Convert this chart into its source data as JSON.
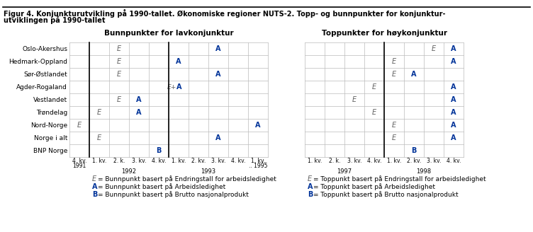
{
  "title_line1": "Figur 4. Konjunkturutvikling på 1990-tallet. Økonomiske regioner NUTS-2. Topp- og bunnpunkter for konjunktur-",
  "title_line2": "utviklingen på 1990-tallet",
  "left_header": "Bunnpunkter for lavkonjunktur",
  "right_header": "Toppunkter for høykonjunktur",
  "rows": [
    "Oslo-Akershus",
    "Hedmark-Oppland",
    "Sør-Østlandet",
    "Agder-Rogaland",
    "Vestlandet",
    "Trøndelag",
    "Nord-Norge",
    "Norge i alt",
    "BNP Norge"
  ],
  "left_quarter_labels": [
    "4. kv.",
    "1. kv.",
    "2. k.",
    "3. kv.",
    "4. kv.",
    "1. kv.",
    "2. kv.",
    "3. kv.",
    "4. kv.",
    "1. kv."
  ],
  "left_year_row1": [
    "1991",
    "",
    "",
    "",
    "",
    "",
    "",
    "",
    "",
    ".. 1995"
  ],
  "left_year_row2": [
    "",
    "1992",
    "",
    "",
    "",
    "1993",
    "",
    "",
    "",
    ""
  ],
  "left_year_centers": [
    [
      2,
      4,
      "1992"
    ],
    [
      6,
      9,
      "1993"
    ]
  ],
  "right_quarter_labels": [
    "1. kv.",
    "2. k.",
    "3. kv.",
    "4. kv.",
    "1. kv.",
    "2. kv.",
    "3. kv.",
    "4. kv."
  ],
  "right_year_centers": [
    [
      0,
      3,
      "1997"
    ],
    [
      4,
      7,
      "1998"
    ]
  ],
  "left_cells": {
    "Oslo-Akershus": {
      "2": "E",
      "7": "A"
    },
    "Hedmark-Oppland": {
      "2": "E",
      "5": "A"
    },
    "Sør-Østlandet": {
      "2": "E",
      "7": "A"
    },
    "Agder-Rogaland": {
      "5": "E+A"
    },
    "Vestlandet": {
      "2": "E",
      "3": "A"
    },
    "Trøndelag": {
      "1": "E",
      "3": "A"
    },
    "Nord-Norge": {
      "0": "E",
      "9": "A"
    },
    "Norge i alt": {
      "1": "E",
      "7": "A"
    },
    "BNP Norge": {
      "4": "B"
    }
  },
  "right_cells": {
    "Oslo-Akershus": {
      "6": "E",
      "7": "A"
    },
    "Hedmark-Oppland": {
      "4": "E",
      "7": "A"
    },
    "Sør-Østlandet": {
      "4": "E",
      "5": "A"
    },
    "Agder-Rogaland": {
      "3": "E",
      "7": "A"
    },
    "Vestlandet": {
      "2": "E",
      "7": "A"
    },
    "Trøndelag": {
      "3": "E",
      "7": "A"
    },
    "Nord-Norge": {
      "4": "E",
      "7": "A"
    },
    "Norge i alt": {
      "4": "E",
      "7": "A"
    },
    "BNP Norge": {
      "5": "B"
    }
  },
  "left_legend": [
    [
      "E",
      "= Bunnpunkt basert på Endringstall for arbeidsledighet"
    ],
    [
      "A",
      "= Bunnpunkt basert på Arbeidsledighet"
    ],
    [
      "B",
      "= Bunnpunkt basert på Brutto nasjonalprodukt"
    ]
  ],
  "right_legend": [
    [
      "E",
      "= Toppunkt basert på Endringstall for arbeidsledighet"
    ],
    [
      "A",
      "= Toppunkt basert på Arbeidsledighet"
    ],
    [
      "B",
      "= Toppunkt basert på Brutto nasjonalprodukt"
    ]
  ],
  "color_E": "#606060",
  "color_A": "#003399",
  "color_B": "#003399",
  "grid_color": "#bbbbbb",
  "bg_color": "#ffffff"
}
